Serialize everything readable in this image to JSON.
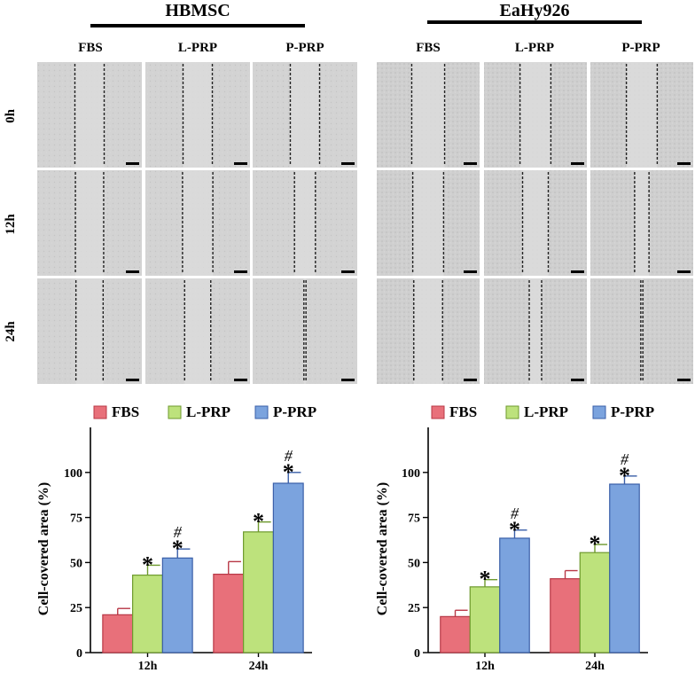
{
  "panels": [
    {
      "title": "HBMSC",
      "columns": [
        "FBS",
        "L-PRP",
        "P-PRP"
      ],
      "rows": [
        "0h",
        "12h",
        "24h"
      ],
      "wound_gap_percent": [
        [
          28,
          28,
          28
        ],
        [
          27,
          29,
          20
        ],
        [
          26,
          25,
          2
        ]
      ]
    },
    {
      "title": "EaHy926",
      "columns": [
        "FBS",
        "L-PRP",
        "P-PRP"
      ],
      "rows": [
        "0h",
        "12h",
        "24h"
      ],
      "wound_gap_percent": [
        [
          32,
          30,
          30
        ],
        [
          30,
          25,
          14
        ],
        [
          28,
          12,
          2
        ]
      ]
    }
  ],
  "chart_data": [
    {
      "type": "bar",
      "title": "",
      "xlabel": "",
      "ylabel": "Cell-covered area (%)",
      "categories": [
        "12h",
        "24h"
      ],
      "series": [
        {
          "name": "FBS",
          "values": [
            21,
            43.5
          ],
          "errors": [
            3.5,
            7
          ]
        },
        {
          "name": "L-PRP",
          "values": [
            43,
            67
          ],
          "errors": [
            5.5,
            5.5
          ]
        },
        {
          "name": "P-PRP",
          "values": [
            52.5,
            94
          ],
          "errors": [
            5,
            6
          ]
        }
      ],
      "annotations": [
        [
          "",
          "",
          "#"
        ],
        [
          "",
          "",
          "#"
        ]
      ],
      "significance_marker": "*",
      "significance": [
        [
          false,
          true,
          true
        ],
        [
          false,
          true,
          true
        ]
      ],
      "ylim": [
        0,
        125
      ],
      "yticks": [
        0,
        25,
        50,
        75,
        100
      ],
      "legend_position": "top"
    },
    {
      "type": "bar",
      "title": "",
      "xlabel": "",
      "ylabel": "Cell-covered area (%)",
      "categories": [
        "12h",
        "24h"
      ],
      "series": [
        {
          "name": "FBS",
          "values": [
            20,
            41
          ],
          "errors": [
            3.5,
            4.5
          ]
        },
        {
          "name": "L-PRP",
          "values": [
            36.5,
            55.5
          ],
          "errors": [
            4,
            4.5
          ]
        },
        {
          "name": "P-PRP",
          "values": [
            63.5,
            93.5
          ],
          "errors": [
            4.5,
            4.5
          ]
        }
      ],
      "annotations": [
        [
          "",
          "",
          "#"
        ],
        [
          "",
          "",
          "#"
        ]
      ],
      "significance_marker": "*",
      "significance": [
        [
          false,
          true,
          true
        ],
        [
          false,
          true,
          true
        ]
      ],
      "ylim": [
        0,
        125
      ],
      "yticks": [
        0,
        25,
        50,
        75,
        100
      ],
      "legend_position": "top"
    }
  ],
  "colors": {
    "FBS": {
      "fill": "#e8707a",
      "stroke": "#b83846"
    },
    "L-PRP": {
      "fill": "#bde27c",
      "stroke": "#6e9a2e"
    },
    "P-PRP": {
      "fill": "#7ba3de",
      "stroke": "#3a5fa8"
    }
  }
}
